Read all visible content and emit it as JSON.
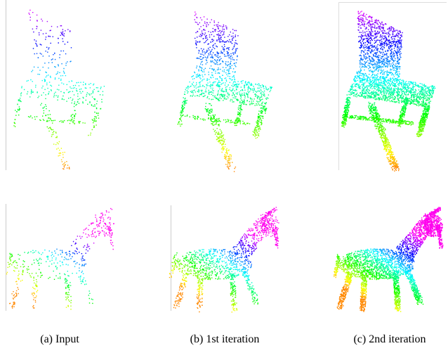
{
  "figure": {
    "captions": [
      "(a) Input",
      "(b) 1st iteration",
      "(c) 2nd iteration"
    ]
  }
}
